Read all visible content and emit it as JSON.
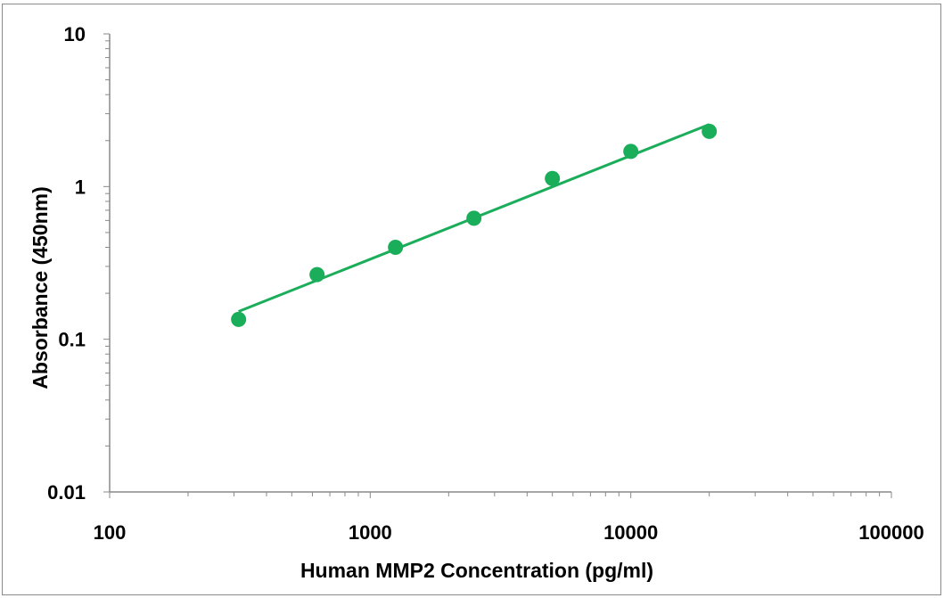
{
  "chart_data": {
    "type": "scatter",
    "xlabel": "Human MMP2  Concentration (pg/ml)",
    "ylabel": "Absorbance (450nm)",
    "x_scale": "log",
    "y_scale": "log",
    "xlim": [
      100,
      100000
    ],
    "ylim": [
      0.01,
      10
    ],
    "x_ticks": [
      "100",
      "1000",
      "10000",
      "100000"
    ],
    "y_ticks": [
      "10",
      "1",
      "0.1",
      "0.01"
    ],
    "grid": false,
    "legend": "none",
    "series": [
      {
        "x": [
          312.5,
          625,
          1250,
          2500,
          5000,
          10000,
          20000
        ],
        "y": [
          0.135,
          0.265,
          0.4,
          0.62,
          1.13,
          1.7,
          2.3
        ],
        "color": "#1aad5a"
      }
    ],
    "fit_line": {
      "x": [
        312.5,
        20000
      ],
      "y": [
        0.152,
        2.55
      ],
      "color": "#1aad5a"
    }
  }
}
